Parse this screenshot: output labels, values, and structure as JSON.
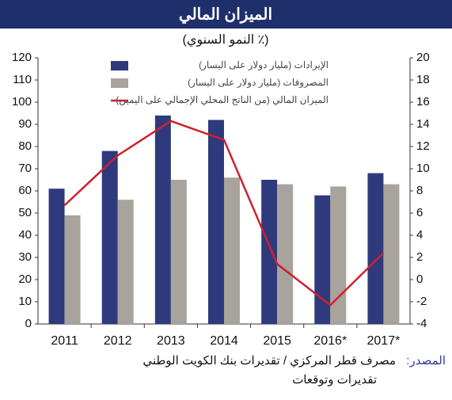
{
  "chart_data": {
    "type": "bar",
    "title": "الميزان المالي",
    "subtitle": "(٪ النمو السنوي)",
    "categories": [
      "2011",
      "2012",
      "2013",
      "2014",
      "2015",
      "2016*",
      "2017*"
    ],
    "series": [
      {
        "name": "الإيرادات (مليار دولار على اليسار)",
        "color": "#2e3a7c",
        "type": "bar",
        "values": [
          61,
          78,
          94,
          92,
          65,
          58,
          68
        ]
      },
      {
        "name": "المصروفات (مليار دولار على اليسار)",
        "color": "#a8a39c",
        "type": "bar",
        "values": [
          49,
          56,
          65,
          66,
          63,
          62,
          63
        ]
      },
      {
        "name": "الميزان المالي (من الناتج المحلي الإجمالي على اليمين)",
        "color": "#d0202f",
        "type": "line",
        "axis": "y2",
        "values": [
          6.7,
          11.2,
          14.3,
          12.6,
          1.4,
          -2.3,
          2.4
        ]
      }
    ],
    "ylim": [
      0,
      120
    ],
    "yticks": [
      0,
      10,
      20,
      30,
      40,
      50,
      60,
      70,
      80,
      90,
      100,
      110,
      120
    ],
    "y2lim": [
      -4,
      20
    ],
    "y2ticks": [
      -4,
      -2,
      0,
      2,
      4,
      6,
      8,
      10,
      12,
      14,
      16,
      18,
      20
    ],
    "grid": false,
    "legend": "top-left",
    "source_label": "المصدر:",
    "source": "مصرف قطر المركزي / تقديرات بنك الكويت الوطني",
    "footnote": "تقديرات وتوقعات"
  }
}
